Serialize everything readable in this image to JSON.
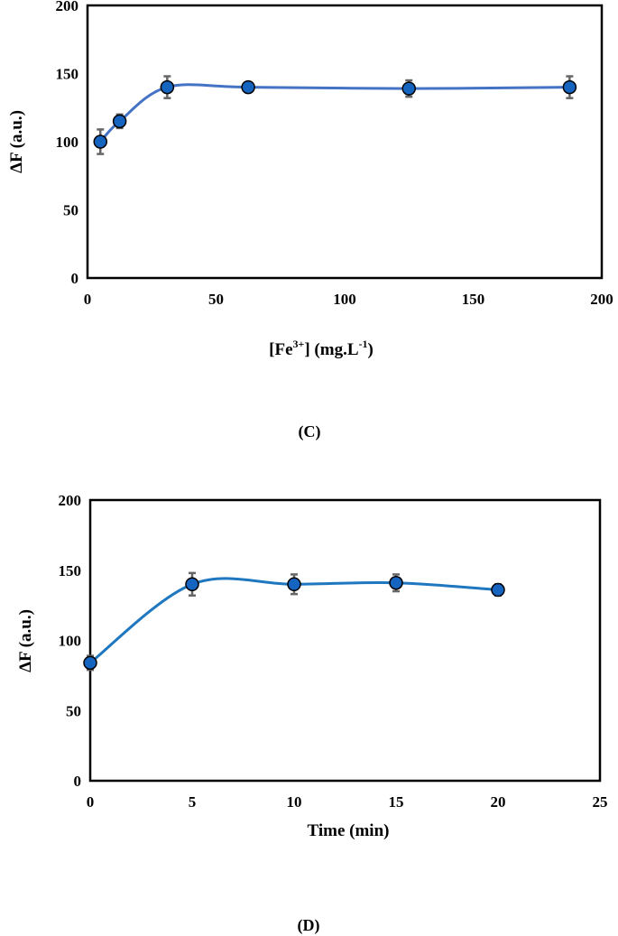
{
  "colors": {
    "curve": "#4472C4",
    "curve_d": "#1F77C0",
    "marker": "#1565C0",
    "marker_edge": "#000000",
    "error_bar": "#666666"
  },
  "chart_data": [
    {
      "type": "scatter",
      "panel_label": "(C)",
      "xlabel_main": "[Fe",
      "xlabel_sup1": "3+",
      "xlabel_mid": "] (mg.L",
      "xlabel_sup2": "-1",
      "xlabel_end": ")",
      "ylabel": "ΔF (a.u.)",
      "xlim": [
        0,
        200
      ],
      "ylim": [
        0,
        200
      ],
      "xticks": [
        0,
        50,
        100,
        150,
        200
      ],
      "yticks": [
        0,
        50,
        100,
        150,
        200
      ],
      "x": [
        5,
        12.5,
        31,
        62.5,
        125,
        187.5
      ],
      "y": [
        100,
        115,
        140,
        140,
        139,
        140
      ],
      "yerr": [
        9,
        5,
        8,
        3,
        6,
        8
      ],
      "smooth_line": true,
      "grid": false
    },
    {
      "type": "scatter",
      "panel_label": "(D)",
      "xlabel": "Time (min)",
      "ylabel": "ΔF (a.u.)",
      "xlim": [
        0,
        25
      ],
      "ylim": [
        0,
        200
      ],
      "xticks": [
        0,
        5,
        10,
        15,
        20,
        25
      ],
      "yticks": [
        0,
        50,
        100,
        150,
        200
      ],
      "x": [
        0,
        5,
        10,
        15,
        20
      ],
      "y": [
        84,
        140,
        140,
        141,
        136
      ],
      "yerr": [
        5,
        8,
        7,
        6,
        4
      ],
      "smooth_line": true,
      "grid": false
    }
  ]
}
